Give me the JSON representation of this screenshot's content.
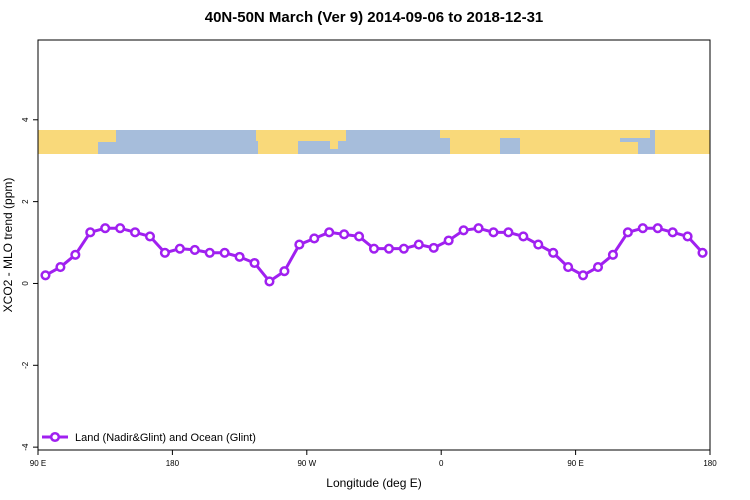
{
  "chart_data": {
    "type": "line",
    "title": "40N-50N March (Ver 9)   2014-09-06 to 2018-12-31",
    "x_label": "Longitude (deg E)",
    "y_label": "XCO2 - MLO trend (ppm)",
    "x": [
      95,
      105,
      115,
      125,
      135,
      145,
      155,
      165,
      175,
      185,
      195,
      205,
      215,
      225,
      235,
      245,
      255,
      265,
      275,
      285,
      295,
      305,
      315,
      325,
      335,
      345,
      355,
      365,
      375,
      385,
      395,
      405,
      415,
      425,
      435,
      445,
      455,
      465,
      475,
      485,
      495,
      505,
      515,
      525,
      535
    ],
    "series": [
      {
        "name": "Land (Nadir&Glint) and Ocean (Glint)",
        "color": "#a020f0",
        "values": [
          0.2,
          0.4,
          0.7,
          1.25,
          1.35,
          1.35,
          1.25,
          1.15,
          0.75,
          0.85,
          0.82,
          0.75,
          0.75,
          0.65,
          0.5,
          0.05,
          0.3,
          0.95,
          1.1,
          1.25,
          1.2,
          1.15,
          0.85,
          0.85,
          0.85,
          0.95,
          0.87,
          1.05,
          1.3,
          1.35,
          1.25,
          1.25,
          1.15,
          0.95,
          0.75,
          0.4,
          0.2,
          0.4,
          0.7,
          1.25,
          1.35,
          1.35,
          1.25,
          1.15,
          0.75
        ]
      }
    ],
    "xlim": [
      90,
      540
    ],
    "xticks": [
      {
        "value": 90,
        "label": "90 E"
      },
      180,
      {
        "value": 270,
        "label": "90 W"
      },
      {
        "value": 360,
        "label": "0"
      },
      {
        "value": 450,
        "label": "90 E"
      },
      {
        "value": 540,
        "label": "180"
      }
    ],
    "ylim": [
      -4.07,
      5.95
    ],
    "yticks": [
      -4,
      -2,
      0,
      2,
      4
    ],
    "legend": "bottom-left"
  }
}
